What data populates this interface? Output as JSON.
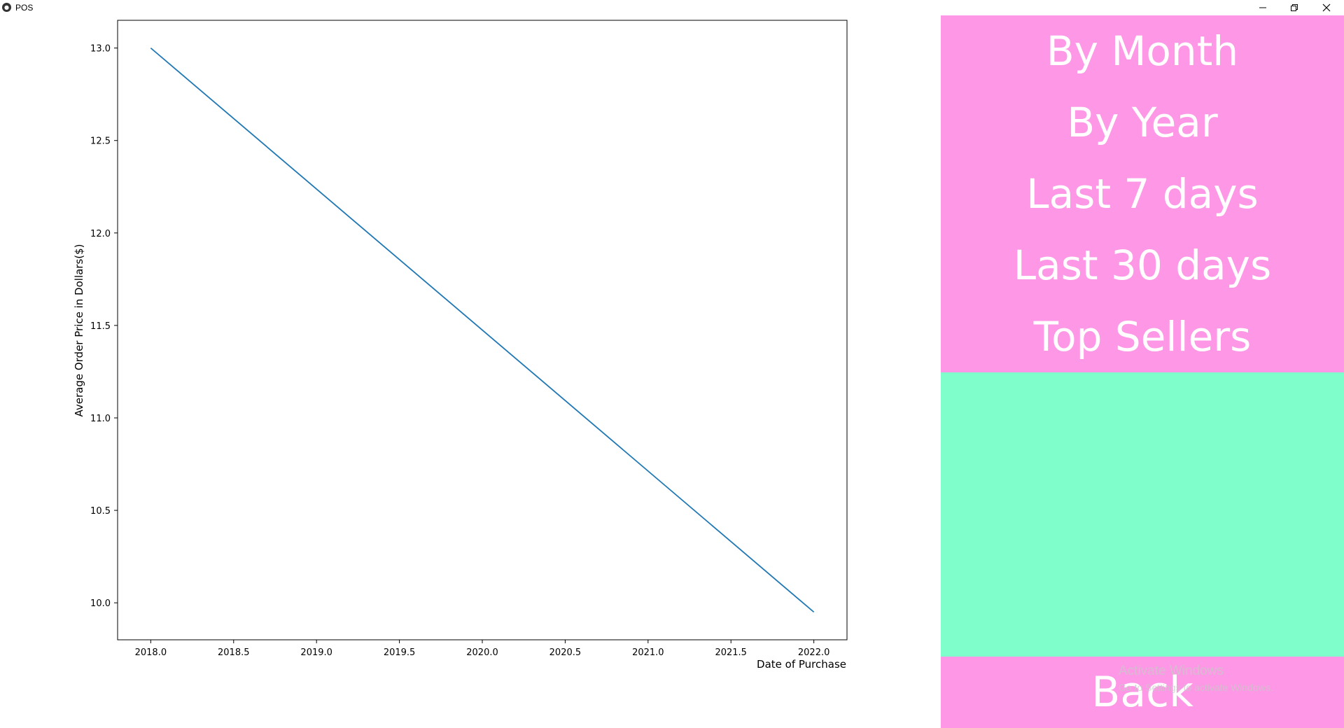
{
  "window": {
    "title": "POS",
    "icon": "kivy-logo-icon",
    "controls": [
      "minimize-icon",
      "restore-icon",
      "close-icon"
    ]
  },
  "chart_data": {
    "type": "line",
    "x": [
      2018.0,
      2022.0
    ],
    "series": [
      {
        "values": [
          13.0,
          9.95
        ],
        "color": "#1f77b4"
      }
    ],
    "xlim": [
      2017.8,
      2022.2
    ],
    "ylim": [
      9.8,
      13.15
    ],
    "xticks": [
      2018.0,
      2018.5,
      2019.0,
      2019.5,
      2020.0,
      2020.5,
      2021.0,
      2021.5,
      2022.0
    ],
    "xtick_labels": [
      "2018.0",
      "2018.5",
      "2019.0",
      "2019.5",
      "2020.0",
      "2020.5",
      "2021.0",
      "2021.5",
      "2022.0"
    ],
    "yticks": [
      10.0,
      10.5,
      11.0,
      11.5,
      12.0,
      12.5,
      13.0
    ],
    "ytick_labels": [
      "10.0",
      "10.5",
      "11.0",
      "11.5",
      "12.0",
      "12.5",
      "13.0"
    ],
    "xlabel": "Date of Purchase",
    "ylabel": "Average Order Price in Dollars($)",
    "grid": false
  },
  "sidebar": {
    "menu": [
      {
        "label": "By Month"
      },
      {
        "label": "By Year"
      },
      {
        "label": "Last 7 days"
      },
      {
        "label": "Last 30 days"
      },
      {
        "label": "Top Sellers"
      }
    ],
    "back_label": "Back",
    "colors": {
      "menu_bg": "#fe97e6",
      "spacer_bg": "#7ffecb",
      "text": "#ffffff"
    }
  },
  "watermark": {
    "line1": "Activate Windows",
    "line2": "Go to Settings to activate Windows."
  }
}
